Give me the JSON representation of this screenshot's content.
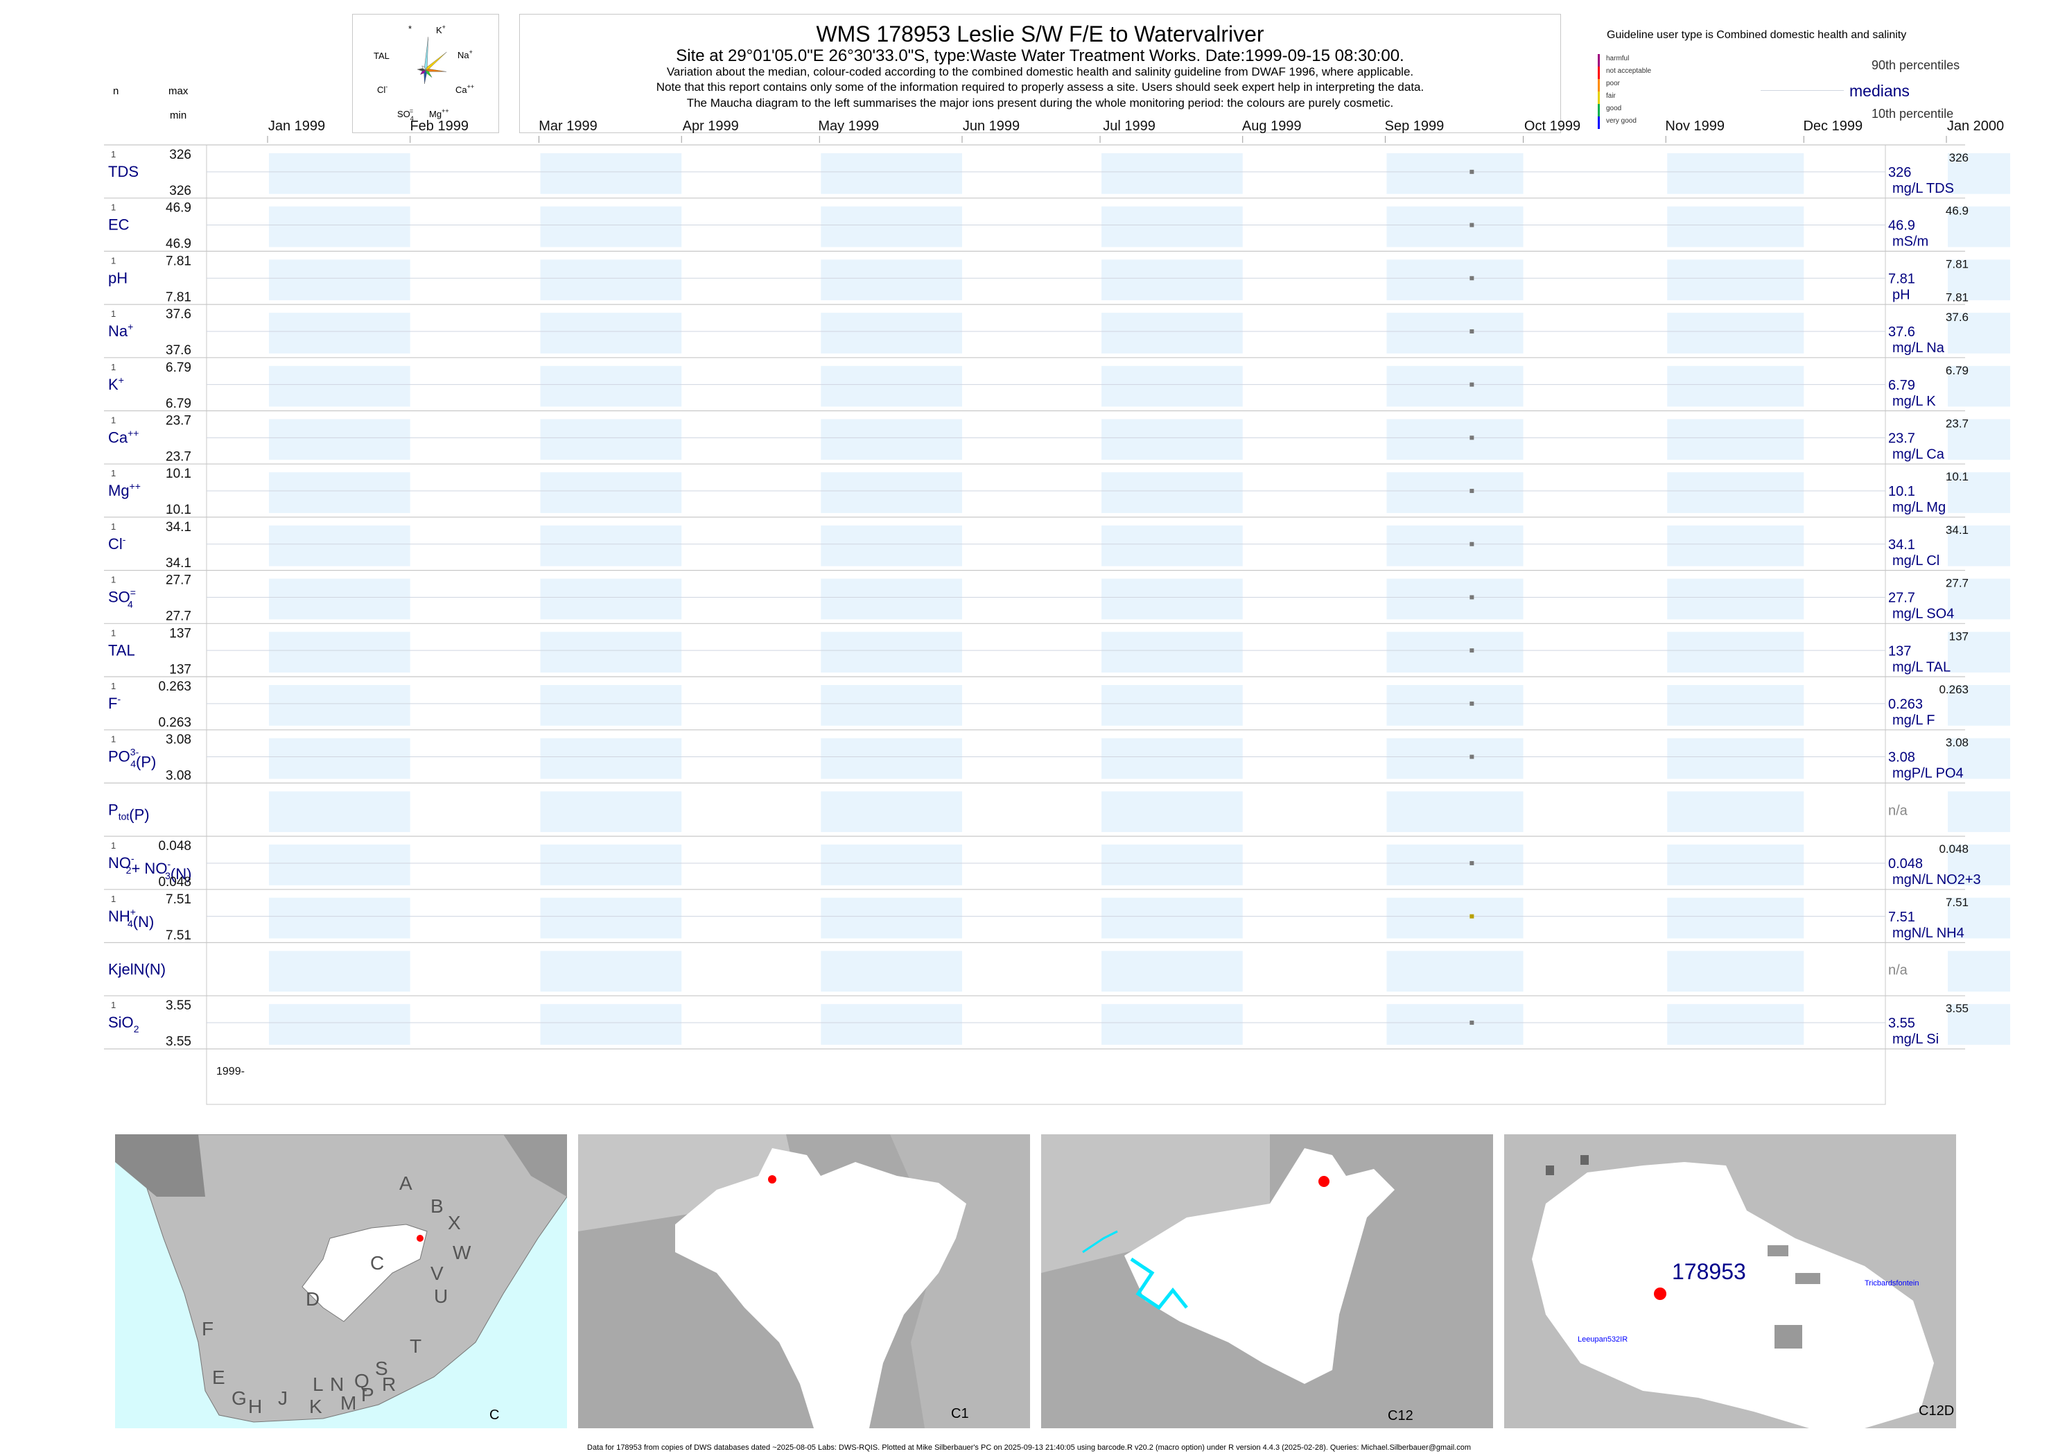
{
  "header": {
    "title": "WMS 178953  Leslie S/W F/E to Watervalriver",
    "subtitle": "Site at 29°01'05.0\"E 26°30'33.0\"S, type:Waste Water Treatment Works. Date:1999-09-15 08:30:00.",
    "note1": "Variation about the median,  colour-coded according to the combined domestic health and salinity guideline from DWAF 1996, where applicable.",
    "note2": "Note that this report contains only some of the information required to properly assess a site. Users should seek expert help in interpreting the data.",
    "note3": "The Maucha diagram to the left summarises the major ions present during the whole monitoring period: the colours are purely cosmetic."
  },
  "col_headers": {
    "n": "n",
    "max": "max",
    "min": "min"
  },
  "maucha": {
    "labels": {
      "star": "*",
      "k": "K",
      "k_sup": "+",
      "tal": "TAL",
      "na": "Na",
      "na_sup": "+",
      "cl": "Cl",
      "cl_sup": "-",
      "ca": "Ca",
      "ca_sup": "++",
      "so4": "SO",
      "so4_sub": "4",
      "so4_sup": "=",
      "mg": "Mg",
      "mg_sup": "++"
    },
    "colors": [
      "#8fe3f0",
      "#f5d000",
      "#f07c00",
      "#33cc33",
      "#2255aa",
      "#a000a0",
      "#444444",
      "#e5e5e5"
    ]
  },
  "legend": {
    "guideline_text": "Guideline user type is Combined domestic health and salinity",
    "classes": [
      {
        "label": "harmful",
        "color": "#a0007f"
      },
      {
        "label": "not acceptable",
        "color": "#ff0000"
      },
      {
        "label": "poor",
        "color": "#ff8c00"
      },
      {
        "label": "fair",
        "color": "#e6d200"
      },
      {
        "label": "good",
        "color": "#00b050"
      },
      {
        "label": "very good",
        "color": "#0000ff"
      }
    ],
    "p90": "90th percentiles",
    "medians": "medians",
    "p10": "10th percentile"
  },
  "chart_data": {
    "type": "scatter",
    "x_axis": {
      "ticks": [
        "Jan 1999",
        "Feb 1999",
        "Mar 1999",
        "Apr 1999",
        "May 1999",
        "Jun 1999",
        "Jul 1999",
        "Aug 1999",
        "Sep 1999",
        "Oct 1999",
        "Nov 1999",
        "Dec 1999",
        "Jan 2000"
      ],
      "range": [
        "1999-01-01",
        "2000-01-01"
      ],
      "year_label": "1999-"
    },
    "sample_date": "1999-09-15",
    "variables": [
      {
        "label": "TDS",
        "n": "1",
        "max": "326",
        "min": "326",
        "median": "326",
        "p90": "326",
        "unit": "mg/L TDS",
        "value": 326,
        "point_color": "#777777"
      },
      {
        "label": "EC",
        "n": "1",
        "max": "46.9",
        "min": "46.9",
        "median": "46.9",
        "p90": "46.9",
        "unit": "mS/m",
        "value": 46.9,
        "point_color": "#777777"
      },
      {
        "label": "pH",
        "n": "1",
        "max": "7.81",
        "min": "7.81",
        "median": "7.81",
        "p90": "7.81",
        "p10": "7.81",
        "unit": "pH",
        "value": 7.81,
        "point_color": "#777777"
      },
      {
        "label": "Na",
        "sup": "+",
        "n": "1",
        "max": "37.6",
        "min": "37.6",
        "median": "37.6",
        "p90": "37.6",
        "unit": "mg/L Na",
        "value": 37.6,
        "point_color": "#777777"
      },
      {
        "label": "K",
        "sup": "+",
        "n": "1",
        "max": "6.79",
        "min": "6.79",
        "median": "6.79",
        "p90": "6.79",
        "unit": "mg/L K",
        "value": 6.79,
        "point_color": "#777777"
      },
      {
        "label": "Ca",
        "sup": "++",
        "n": "1",
        "max": "23.7",
        "min": "23.7",
        "median": "23.7",
        "p90": "23.7",
        "unit": "mg/L Ca",
        "value": 23.7,
        "point_color": "#777777"
      },
      {
        "label": "Mg",
        "sup": "++",
        "n": "1",
        "max": "10.1",
        "min": "10.1",
        "median": "10.1",
        "p90": "10.1",
        "unit": "mg/L Mg",
        "value": 10.1,
        "point_color": "#777777"
      },
      {
        "label": "Cl",
        "sup": "-",
        "n": "1",
        "max": "34.1",
        "min": "34.1",
        "median": "34.1",
        "p90": "34.1",
        "unit": "mg/L Cl",
        "value": 34.1,
        "point_color": "#777777"
      },
      {
        "label": "SO",
        "sub": "4",
        "sup": "=",
        "n": "1",
        "max": "27.7",
        "min": "27.7",
        "median": "27.7",
        "p90": "27.7",
        "unit": "mg/L SO4",
        "value": 27.7,
        "point_color": "#777777"
      },
      {
        "label": "TAL",
        "n": "1",
        "max": "137",
        "min": "137",
        "median": "137",
        "p90": "137",
        "unit": "mg/L TAL",
        "value": 137,
        "point_color": "#777777"
      },
      {
        "label": "F",
        "sup": "-",
        "n": "1",
        "max": "0.263",
        "min": "0.263",
        "median": "0.263",
        "p90": "0.263",
        "unit": "mg/L F",
        "value": 0.263,
        "point_color": "#777777"
      },
      {
        "label": "PO",
        "sub": "4",
        "sup": "3-",
        "suffix": "(P)",
        "n": "1",
        "max": "3.08",
        "min": "3.08",
        "median": "3.08",
        "p90": "3.08",
        "unit": "mgP/L PO4",
        "value": 3.08,
        "point_color": "#777777"
      },
      {
        "label": "P",
        "sub": "tot",
        "suffix": "(P)",
        "n": "",
        "max": "",
        "min": "",
        "median": "n/a",
        "p90": "",
        "unit": "",
        "value": null,
        "point_color": "#777777"
      },
      {
        "label": "NO",
        "sub": "2",
        "sup": "-",
        "suffix": "+ NO",
        "sub2": "3",
        "sup2": "-",
        "suffix2": "(N)",
        "n": "1",
        "max": "0.048",
        "min": "0.048",
        "median": "0.048",
        "p90": "0.048",
        "unit": "mgN/L NO2+3",
        "value": 0.048,
        "point_color": "#777777"
      },
      {
        "label": "NH",
        "sub": "4",
        "sup": "+",
        "suffix": "(N)",
        "n": "1",
        "max": "7.51",
        "min": "7.51",
        "median": "7.51",
        "p90": "7.51",
        "unit": "mgN/L NH4",
        "value": 7.51,
        "point_color": "#b8a000"
      },
      {
        "label": "KjelN(N)",
        "n": "",
        "max": "",
        "min": "",
        "median": "n/a",
        "p90": "",
        "unit": "",
        "value": null,
        "point_color": "#777777"
      },
      {
        "label": "SiO",
        "sub": "2",
        "n": "1",
        "max": "3.55",
        "min": "3.55",
        "median": "3.55",
        "p90": "3.55",
        "unit": "mg/L Si",
        "value": 3.55,
        "point_color": "#777777"
      }
    ]
  },
  "maps": {
    "panel_labels": [
      "C",
      "C1",
      "C12",
      "C12D"
    ],
    "letters": [
      "A",
      "B",
      "X",
      "W",
      "C",
      "V",
      "U",
      "D",
      "T",
      "F",
      "E",
      "G",
      "H",
      "J",
      "K",
      "L",
      "N",
      "M",
      "Q",
      "P",
      "S",
      "R"
    ],
    "site_label": "178953",
    "town1": "Tricbardsfontein",
    "town2": "Leeupan532IR"
  },
  "footer": "Data for 178953 from copies of DWS databases dated ~2025-08-05 Labs: DWS-RQIS. Plotted at Mike Silberbauer's PC on 2025-09-13 21:40:05 using barcode.R v20.2 (macro option) under R version 4.4.3 (2025-02-28). Queries: Michael.Silberbauer@gmail.com"
}
